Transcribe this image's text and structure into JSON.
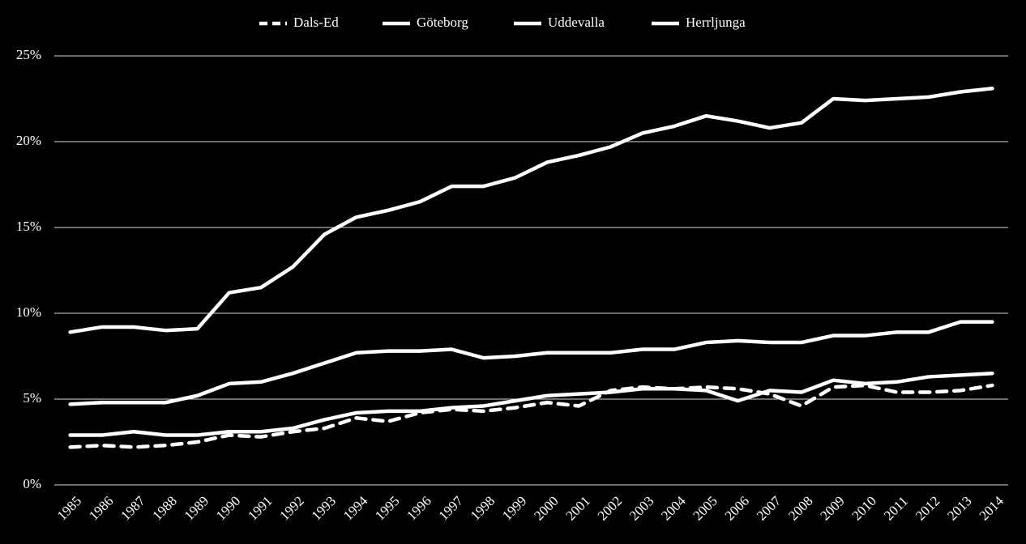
{
  "chart_data": {
    "type": "line",
    "categories": [
      "1985",
      "1986",
      "1987",
      "1988",
      "1989",
      "1990",
      "1991",
      "1992",
      "1993",
      "1994",
      "1995",
      "1996",
      "1997",
      "1998",
      "1999",
      "2000",
      "2001",
      "2002",
      "2003",
      "2004",
      "2005",
      "2006",
      "2007",
      "2008",
      "2009",
      "2010",
      "2011",
      "2012",
      "2013",
      "2014"
    ],
    "series": [
      {
        "name": "Dals-Ed",
        "color": "#ffffff",
        "style": "dashed",
        "values": [
          2.2,
          2.3,
          2.2,
          2.3,
          2.5,
          2.9,
          2.8,
          3.1,
          3.3,
          3.9,
          3.7,
          4.2,
          4.4,
          4.3,
          4.5,
          4.8,
          4.6,
          5.5,
          5.7,
          5.6,
          5.7,
          5.6,
          5.3,
          4.6,
          5.7,
          5.8,
          5.4,
          5.4,
          5.5,
          5.8
        ]
      },
      {
        "name": "Göteborg",
        "color": "#ffffff",
        "style": "solid",
        "values": [
          8.9,
          9.2,
          9.2,
          9.0,
          9.1,
          11.2,
          11.5,
          12.7,
          14.6,
          15.6,
          16.0,
          16.5,
          17.4,
          17.4,
          17.9,
          18.8,
          19.2,
          19.7,
          20.5,
          20.9,
          21.5,
          21.2,
          20.8,
          21.1,
          22.5,
          22.4,
          22.5,
          22.6,
          22.9,
          23.1
        ]
      },
      {
        "name": "Uddevalla",
        "color": "#ffffff",
        "style": "solid",
        "values": [
          4.7,
          4.8,
          4.8,
          4.8,
          5.2,
          5.9,
          6.0,
          6.5,
          7.1,
          7.7,
          7.8,
          7.8,
          7.9,
          7.4,
          7.5,
          7.7,
          7.7,
          7.7,
          7.9,
          7.9,
          8.3,
          8.4,
          8.3,
          8.3,
          8.7,
          8.7,
          8.9,
          8.9,
          9.5,
          9.5
        ]
      },
      {
        "name": "Herrljunga",
        "color": "#ffffff",
        "style": "solid",
        "values": [
          2.9,
          2.9,
          3.1,
          2.9,
          2.9,
          3.1,
          3.1,
          3.3,
          3.8,
          4.2,
          4.3,
          4.3,
          4.5,
          4.6,
          4.9,
          5.2,
          5.3,
          5.4,
          5.6,
          5.6,
          5.5,
          4.9,
          5.5,
          5.4,
          6.1,
          5.9,
          6.0,
          6.3,
          6.4,
          6.5
        ]
      }
    ],
    "ylim": [
      0,
      25
    ],
    "yticks": [
      {
        "value": 0,
        "label": "0%"
      },
      {
        "value": 5,
        "label": "5%"
      },
      {
        "value": 10,
        "label": "10%"
      },
      {
        "value": 15,
        "label": "15%"
      },
      {
        "value": 20,
        "label": "20%"
      },
      {
        "value": 25,
        "label": "25%"
      }
    ],
    "grid": true,
    "legend": "top"
  }
}
